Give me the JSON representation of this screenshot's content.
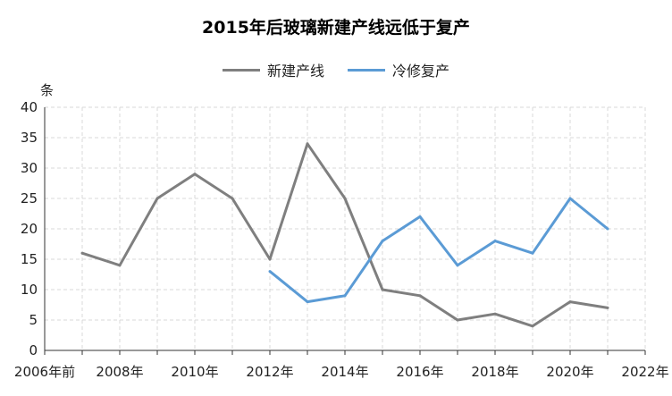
{
  "chart_data": {
    "type": "line",
    "title": "2015年后玻璃新建产线远低于复产",
    "ylabel": "条",
    "xlabel": "",
    "ylim": [
      0,
      40
    ],
    "yticks": [
      0,
      5,
      10,
      15,
      20,
      25,
      30,
      35,
      40
    ],
    "xlim": [
      2006,
      2022
    ],
    "xtick_values": [
      2006,
      2008,
      2010,
      2012,
      2014,
      2016,
      2018,
      2020,
      2022
    ],
    "xtick_labels": [
      "2006年前",
      "2008年",
      "2010年",
      "2012年",
      "2014年",
      "2016年",
      "2018年",
      "2020年",
      "2022年"
    ],
    "grid": true,
    "legend_position": "top-center",
    "series": [
      {
        "name": "新建产线",
        "color": "#7f7f7f",
        "x": [
          2007,
          2008,
          2009,
          2010,
          2011,
          2012,
          2013,
          2014,
          2015,
          2016,
          2017,
          2018,
          2019,
          2020,
          2021
        ],
        "values": [
          16,
          14,
          25,
          29,
          25,
          15,
          34,
          25,
          10,
          9,
          5,
          6,
          4,
          8,
          7
        ]
      },
      {
        "name": "冷修复产",
        "color": "#5b9bd5",
        "x": [
          2012,
          2013,
          2014,
          2015,
          2016,
          2017,
          2018,
          2019,
          2020,
          2021
        ],
        "values": [
          13,
          8,
          9,
          18,
          22,
          14,
          18,
          16,
          25,
          20
        ]
      }
    ]
  }
}
